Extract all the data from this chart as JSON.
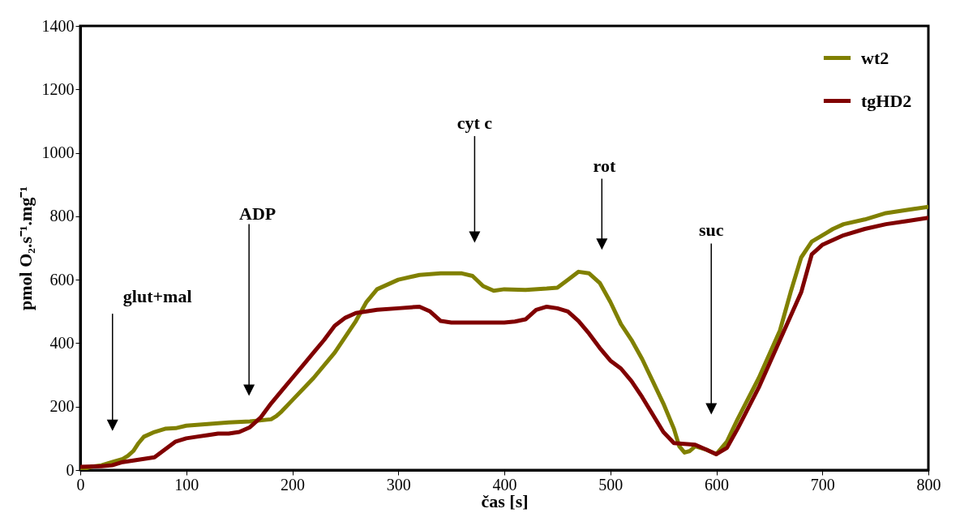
{
  "chart_data": {
    "type": "line",
    "xlabel": "čas [s]",
    "ylabel": "pmol O₂.s⁻¹.mg⁻¹",
    "xlim": [
      0,
      800
    ],
    "ylim": [
      0,
      1400
    ],
    "xticks": [
      0,
      100,
      200,
      300,
      400,
      500,
      600,
      700,
      800
    ],
    "yticks": [
      0,
      200,
      400,
      600,
      800,
      1000,
      1200,
      1400
    ],
    "grid": false,
    "legend": "top right",
    "line_style": "solid",
    "marker": "none",
    "series": [
      {
        "name": "wt2",
        "color": "#808000",
        "x": [
          0,
          10,
          20,
          30,
          40,
          45,
          50,
          55,
          60,
          70,
          80,
          90,
          100,
          120,
          140,
          160,
          180,
          185,
          190,
          200,
          220,
          240,
          250,
          260,
          270,
          280,
          300,
          320,
          340,
          360,
          370,
          380,
          390,
          400,
          420,
          440,
          450,
          460,
          470,
          480,
          490,
          500,
          510,
          520,
          530,
          540,
          550,
          560,
          565,
          570,
          575,
          580,
          590,
          600,
          610,
          620,
          640,
          660,
          670,
          680,
          690,
          700,
          710,
          720,
          740,
          760,
          780,
          800
        ],
        "values": [
          0,
          10,
          15,
          25,
          35,
          45,
          60,
          85,
          105,
          120,
          130,
          132,
          140,
          145,
          150,
          153,
          160,
          170,
          185,
          220,
          290,
          370,
          420,
          470,
          530,
          570,
          600,
          615,
          620,
          620,
          612,
          580,
          565,
          570,
          568,
          572,
          575,
          600,
          625,
          620,
          590,
          530,
          460,
          410,
          350,
          280,
          210,
          130,
          75,
          55,
          60,
          75,
          65,
          50,
          90,
          160,
          290,
          440,
          560,
          670,
          720,
          740,
          760,
          775,
          790,
          810,
          820,
          830
        ]
      },
      {
        "name": "tgHD2",
        "color": "#800000",
        "x": [
          0,
          20,
          30,
          40,
          50,
          60,
          70,
          80,
          90,
          100,
          110,
          120,
          130,
          140,
          150,
          160,
          170,
          180,
          190,
          200,
          210,
          220,
          230,
          240,
          250,
          260,
          280,
          300,
          320,
          330,
          340,
          350,
          400,
          410,
          420,
          430,
          440,
          450,
          460,
          470,
          480,
          490,
          500,
          510,
          520,
          530,
          540,
          550,
          560,
          580,
          590,
          600,
          610,
          620,
          640,
          660,
          680,
          690,
          700,
          720,
          740,
          760,
          780,
          800
        ],
        "values": [
          10,
          12,
          15,
          25,
          30,
          35,
          40,
          65,
          90,
          100,
          105,
          110,
          115,
          115,
          120,
          135,
          165,
          210,
          250,
          290,
          330,
          370,
          410,
          455,
          480,
          495,
          505,
          510,
          515,
          500,
          470,
          465,
          465,
          468,
          475,
          505,
          515,
          510,
          500,
          470,
          430,
          385,
          345,
          320,
          280,
          230,
          175,
          120,
          85,
          80,
          65,
          50,
          70,
          130,
          260,
          410,
          560,
          680,
          710,
          740,
          760,
          775,
          785,
          795
        ]
      }
    ],
    "annotations": [
      "glut+mal",
      "ADP",
      "cyt c",
      "rot",
      "suc"
    ]
  }
}
